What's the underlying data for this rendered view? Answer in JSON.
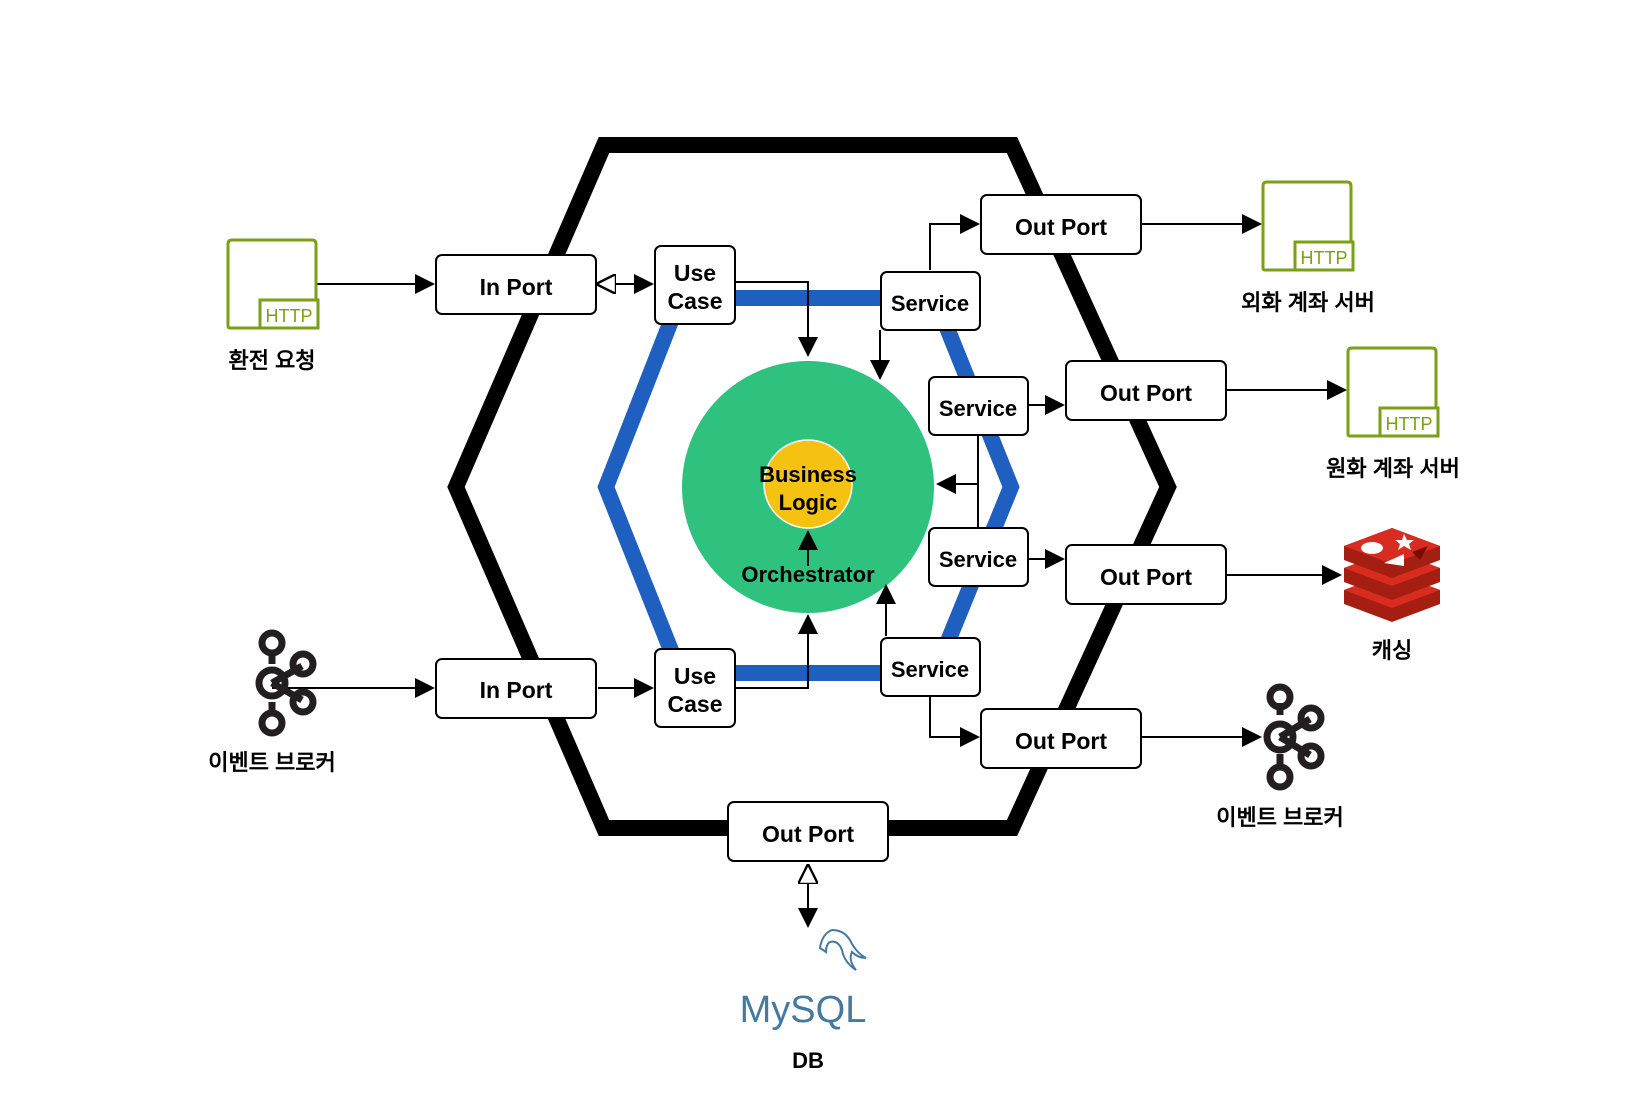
{
  "nodes": {
    "in_port_1": "In Port",
    "in_port_2": "In Port",
    "use_case_1_line1": "Use",
    "use_case_1_line2": "Case",
    "use_case_2_line1": "Use",
    "use_case_2_line2": "Case",
    "service_1": "Service",
    "service_2": "Service",
    "service_3": "Service",
    "service_4": "Service",
    "out_port_1": "Out Port",
    "out_port_2": "Out Port",
    "out_port_3": "Out Port",
    "out_port_4": "Out Port",
    "out_port_db": "Out Port",
    "business_logic_line1": "Business",
    "business_logic_line2": "Logic",
    "orchestrator": "Orchestrator"
  },
  "externals": {
    "exchange_request": "환전 요청",
    "event_broker_in": "이벤트 브로커",
    "foreign_account_server": "외화 계좌 서버",
    "won_account_server": "원화 계좌 서버",
    "caching": "캐싱",
    "event_broker_out": "이벤트 브로커",
    "db": "DB"
  },
  "icons": {
    "http_label": "HTTP",
    "mysql_label": "MySQL",
    "http_color": "#7aa116",
    "mysql_color": "#4479a1",
    "redis_color": "#d82c20",
    "kafka_color": "#231f20"
  },
  "colors": {
    "hexagon_outer": "#000000",
    "hexagon_inner": "#1f5fbf",
    "core_circle": "#2ec27e",
    "logic_circle": "#f5c211"
  }
}
